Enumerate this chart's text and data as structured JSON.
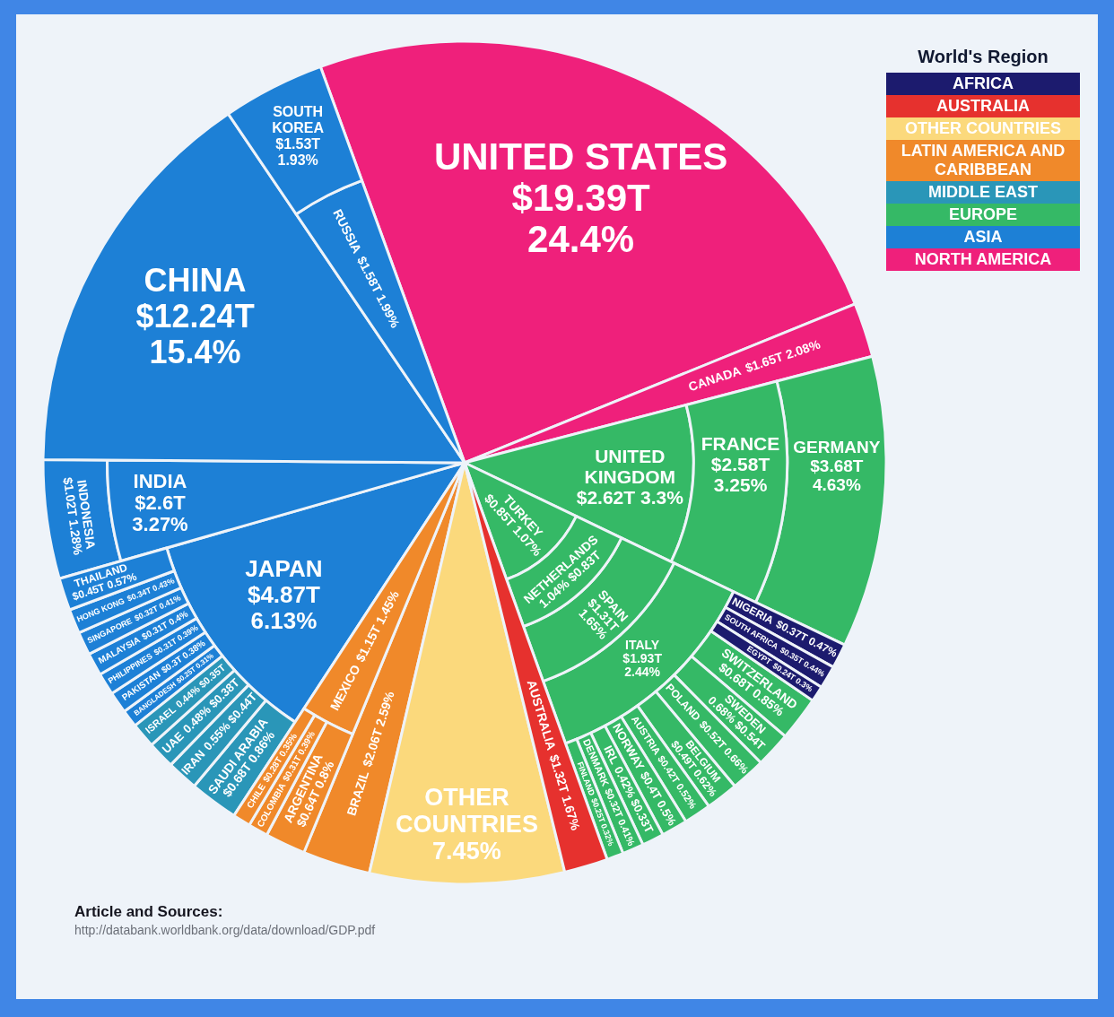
{
  "chart_data": {
    "type": "other",
    "legend": "top right",
    "legend_title": "World's Region",
    "categories": [
      "UNITED STATES",
      "CANADA",
      "NIGERIA",
      "SOUTH AFRICA",
      "EGYPT",
      "GERMANY",
      "UNITED KINGDOM",
      "FRANCE",
      "ITALY",
      "SPAIN",
      "TURKEY",
      "NETHERLANDS",
      "SWITZERLAND",
      "SWEDEN",
      "POLAND",
      "BELGIUM",
      "AUSTRIA",
      "NORWAY",
      "IRL",
      "DENMARK",
      "FINLAND",
      "AUSTRALIA",
      "OTHER COUNTRIES",
      "BRAZIL",
      "MEXICO",
      "ARGENTINA",
      "COLOMBIA",
      "CHILE",
      "SAUDI ARABIA",
      "IRAN",
      "UAE",
      "ISRAEL",
      "JAPAN",
      "INDONESIA",
      "INDIA",
      "CHINA",
      "RUSSIA",
      "SOUTH KOREA",
      "BANGLADESH",
      "PAKISTAN",
      "PHILIPPINES",
      "MALAYSIA",
      "SINGAPORE",
      "HONG KONG",
      "THAILAND"
    ],
    "series": [
      {
        "name": "AFRICA",
        "color": "#1c1b6e",
        "values": [
          null,
          null,
          0.47,
          0.44,
          0.3,
          null,
          null,
          null,
          null,
          null,
          null,
          null,
          null,
          null,
          null,
          null,
          null,
          null,
          null,
          null,
          null,
          null,
          null,
          null,
          null,
          null,
          null,
          null,
          null,
          null,
          null,
          null,
          null,
          null,
          null,
          null,
          null,
          null,
          null,
          null,
          null,
          null,
          null,
          null,
          null
        ],
        "value_labels": [
          null,
          null,
          "$0.37T 0.47%",
          "$0.35T 0.44%",
          "$0.24T 0.3%",
          null,
          null,
          null,
          null,
          null,
          null,
          null,
          null,
          null,
          null,
          null,
          null,
          null,
          null,
          null,
          null,
          null,
          null,
          null,
          null,
          null,
          null,
          null,
          null,
          null,
          null,
          null,
          null,
          null,
          null,
          null,
          null,
          null,
          null,
          null,
          null,
          null,
          null,
          null,
          null
        ]
      },
      {
        "name": "AUSTRALIA",
        "color": "#e6312e",
        "values": [
          null,
          null,
          null,
          null,
          null,
          null,
          null,
          null,
          null,
          null,
          null,
          null,
          null,
          null,
          null,
          null,
          null,
          null,
          null,
          null,
          null,
          1.67,
          null,
          null,
          null,
          null,
          null,
          null,
          null,
          null,
          null,
          null,
          null,
          null,
          null,
          null,
          null,
          null,
          null,
          null,
          null,
          null,
          null,
          null,
          null
        ],
        "value_labels": [
          null,
          null,
          null,
          null,
          null,
          null,
          null,
          null,
          null,
          null,
          null,
          null,
          null,
          null,
          null,
          null,
          null,
          null,
          null,
          null,
          null,
          "$1.32T 1.67%",
          null,
          null,
          null,
          null,
          null,
          null,
          null,
          null,
          null,
          null,
          null,
          null,
          null,
          null,
          null,
          null,
          null,
          null,
          null,
          null,
          null,
          null,
          null
        ]
      },
      {
        "name": "OTHER COUNTRIES",
        "color": "#fbd97c",
        "values": [
          null,
          null,
          null,
          null,
          null,
          null,
          null,
          null,
          null,
          null,
          null,
          null,
          null,
          null,
          null,
          null,
          null,
          null,
          null,
          null,
          null,
          null,
          7.45,
          null,
          null,
          null,
          null,
          null,
          null,
          null,
          null,
          null,
          null,
          null,
          null,
          null,
          null,
          null,
          null,
          null,
          null,
          null,
          null,
          null,
          null
        ],
        "value_labels": [
          null,
          null,
          null,
          null,
          null,
          null,
          null,
          null,
          null,
          null,
          null,
          null,
          null,
          null,
          null,
          null,
          null,
          null,
          null,
          null,
          null,
          null,
          "7.45%",
          null,
          null,
          null,
          null,
          null,
          null,
          null,
          null,
          null,
          null,
          null,
          null,
          null,
          null,
          null,
          null,
          null,
          null,
          null,
          null,
          null,
          null
        ]
      },
      {
        "name": "LATIN AMERICA AND CARIBBEAN",
        "color": "#f0892a",
        "values": [
          null,
          null,
          null,
          null,
          null,
          null,
          null,
          null,
          null,
          null,
          null,
          null,
          null,
          null,
          null,
          null,
          null,
          null,
          null,
          null,
          null,
          null,
          null,
          2.59,
          1.45,
          0.8,
          0.39,
          0.35,
          null,
          null,
          null,
          null,
          null,
          null,
          null,
          null,
          null,
          null,
          null,
          null,
          null,
          null,
          null,
          null,
          null
        ],
        "value_labels": [
          null,
          null,
          null,
          null,
          null,
          null,
          null,
          null,
          null,
          null,
          null,
          null,
          null,
          null,
          null,
          null,
          null,
          null,
          null,
          null,
          null,
          null,
          null,
          "$2.06T 2.59%",
          "$1.15T 1.45%",
          "$0.64T 0.8%",
          "$0.31T 0.39%",
          "$0.28T 0.35%",
          null,
          null,
          null,
          null,
          null,
          null,
          null,
          null,
          null,
          null,
          null,
          null,
          null,
          null,
          null,
          null,
          null
        ]
      },
      {
        "name": "MIDDLE EAST",
        "color": "#2a96b8",
        "values": [
          null,
          null,
          null,
          null,
          null,
          null,
          null,
          null,
          null,
          null,
          null,
          null,
          null,
          null,
          null,
          null,
          null,
          null,
          null,
          null,
          null,
          null,
          null,
          null,
          null,
          null,
          null,
          null,
          0.86,
          0.55,
          0.48,
          0.44,
          null,
          null,
          null,
          null,
          null,
          null,
          null,
          null,
          null,
          null,
          null,
          null,
          null
        ],
        "value_labels": [
          null,
          null,
          null,
          null,
          null,
          null,
          null,
          null,
          null,
          null,
          null,
          null,
          null,
          null,
          null,
          null,
          null,
          null,
          null,
          null,
          null,
          null,
          null,
          null,
          null,
          null,
          null,
          null,
          "$0.68T 0.86%",
          "0.55% $0.44T",
          "0.48% $0.38T",
          "0.44% $0.35T",
          null,
          null,
          null,
          null,
          null,
          null,
          null,
          null,
          null,
          null,
          null,
          null,
          null
        ]
      },
      {
        "name": "EUROPE",
        "color": "#35b966",
        "values": [
          null,
          null,
          null,
          null,
          null,
          4.63,
          3.3,
          3.25,
          2.44,
          1.65,
          1.07,
          1.04,
          0.85,
          0.68,
          0.66,
          0.62,
          0.52,
          0.5,
          0.42,
          0.41,
          0.32,
          null,
          null,
          null,
          null,
          null,
          null,
          null,
          null,
          null,
          null,
          null,
          null,
          null,
          null,
          null,
          null,
          null,
          null,
          null,
          null,
          null,
          null,
          null,
          null
        ],
        "value_labels": [
          null,
          null,
          null,
          null,
          null,
          "$3.68T 4.63%",
          "$2.62T 3.3%",
          "$2.58T 3.25%",
          "$1.93T 2.44%",
          "$1.31T 1.65%",
          "$0.85T 1.07%",
          "1.04% $0.83T",
          "$0.68T 0.85%",
          "0.68% $0.54T",
          "$0.52T 0.66%",
          "$0.49T 0.62%",
          "$0.42T 0.52%",
          "$0.4T 0.5%",
          "0.42% $0.33T",
          "$0.32T 0.41%",
          "$0.25T 0.32%",
          null,
          null,
          null,
          null,
          null,
          null,
          null,
          null,
          null,
          null,
          null,
          null,
          null,
          null,
          null,
          null,
          null,
          null,
          null,
          null,
          null,
          null,
          null,
          null
        ]
      },
      {
        "name": "ASIA",
        "color": "#1d80d6",
        "values": [
          null,
          null,
          null,
          null,
          null,
          null,
          null,
          null,
          null,
          null,
          null,
          null,
          null,
          null,
          null,
          null,
          null,
          null,
          null,
          null,
          null,
          null,
          null,
          null,
          null,
          null,
          null,
          null,
          null,
          null,
          null,
          null,
          6.13,
          1.28,
          3.27,
          15.4,
          1.99,
          1.93,
          0.31,
          0.38,
          0.39,
          0.4,
          0.41,
          0.43,
          0.57
        ],
        "value_labels": [
          null,
          null,
          null,
          null,
          null,
          null,
          null,
          null,
          null,
          null,
          null,
          null,
          null,
          null,
          null,
          null,
          null,
          null,
          null,
          null,
          null,
          null,
          null,
          null,
          null,
          null,
          null,
          null,
          null,
          null,
          null,
          null,
          "$4.87T 6.13%",
          "$1.02T 1.28%",
          "$2.6T 3.27%",
          "$12.24T 15.4%",
          "$1.58T 1.99%",
          "$1.53T 1.93%",
          "$0.25T 0.31%",
          "$0.3T 0.38%",
          "$0.31T 0.39%",
          "$0.31T 0.4%",
          "$0.32T 0.41%",
          "$0.34T 0.43%",
          "$0.45T 0.57%"
        ]
      },
      {
        "name": "NORTH AMERICA",
        "color": "#ef207b",
        "values": [
          24.4,
          2.08,
          null,
          null,
          null,
          null,
          null,
          null,
          null,
          null,
          null,
          null,
          null,
          null,
          null,
          null,
          null,
          null,
          null,
          null,
          null,
          null,
          null,
          null,
          null,
          null,
          null,
          null,
          null,
          null,
          null,
          null,
          null,
          null,
          null,
          null,
          null,
          null,
          null,
          null,
          null,
          null,
          null,
          null,
          null
        ],
        "value_labels": [
          "$19.39T 24.4%",
          "$1.65T 2.08%",
          null,
          null,
          null,
          null,
          null,
          null,
          null,
          null,
          null,
          null,
          null,
          null,
          null,
          null,
          null,
          null,
          null,
          null,
          null,
          null,
          null,
          null,
          null,
          null,
          null,
          null,
          null,
          null,
          null,
          null,
          null,
          null,
          null,
          null,
          null,
          null,
          null,
          null,
          null,
          null,
          null,
          null,
          null
        ]
      }
    ],
    "annotations": [
      "Article and Sources:",
      "http://databank.worldbank.org/data/download/GDP.pdf"
    ]
  }
}
